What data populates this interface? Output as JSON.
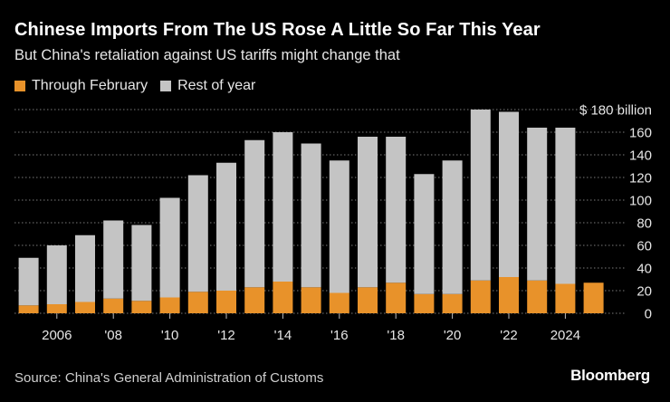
{
  "header": {
    "title": "Chinese Imports From The US Rose A Little So Far This Year",
    "subtitle": "But China's retaliation against US tariffs might change that"
  },
  "legend": [
    {
      "label": "Through February",
      "color": "#e8922a"
    },
    {
      "label": "Rest of year",
      "color": "#c4c4c4"
    }
  ],
  "footer": {
    "source": "Source: China's General Administration of Customs",
    "brand": "Bloomberg"
  },
  "chart_data": {
    "type": "bar",
    "stacked": true,
    "title": "Chinese Imports From The US Rose A Little So Far This Year",
    "subtitle": "But China's retaliation against US tariffs might change that",
    "xlabel": "",
    "ylabel": "",
    "unit_label": "$ 180 billion",
    "ylim": [
      0,
      180
    ],
    "yticks": [
      0,
      20,
      40,
      60,
      80,
      100,
      120,
      140,
      160,
      180
    ],
    "ytick_labels": [
      "0",
      "20",
      "40",
      "60",
      "80",
      "100",
      "120",
      "140",
      "160",
      "$ 180 billion"
    ],
    "grid": true,
    "legend_position": "top-left",
    "categories": [
      "2005",
      "2006",
      "2007",
      "2008",
      "2009",
      "2010",
      "2011",
      "2012",
      "2013",
      "2014",
      "2015",
      "2016",
      "2017",
      "2018",
      "2019",
      "2020",
      "2021",
      "2022",
      "2023",
      "2024",
      "2025"
    ],
    "xtick_labels": [
      {
        "category": "2006",
        "label": "2006"
      },
      {
        "category": "2008",
        "label": "'08"
      },
      {
        "category": "2010",
        "label": "'10"
      },
      {
        "category": "2012",
        "label": "'12"
      },
      {
        "category": "2014",
        "label": "'14"
      },
      {
        "category": "2016",
        "label": "'16"
      },
      {
        "category": "2018",
        "label": "'18"
      },
      {
        "category": "2020",
        "label": "'20"
      },
      {
        "category": "2022",
        "label": "'22"
      },
      {
        "category": "2024",
        "label": "2024"
      }
    ],
    "series": [
      {
        "name": "Through February",
        "color": "#e8922a",
        "values": [
          7,
          8,
          10,
          13,
          11,
          14,
          19,
          20,
          23,
          28,
          23,
          18,
          23,
          27,
          17,
          17,
          29,
          32,
          29,
          26,
          27
        ]
      },
      {
        "name": "Rest of year",
        "color": "#c4c4c4",
        "values": [
          42,
          52,
          59,
          69,
          67,
          88,
          103,
          113,
          130,
          132,
          127,
          117,
          133,
          129,
          106,
          118,
          151,
          146,
          135,
          138,
          0
        ]
      }
    ]
  }
}
